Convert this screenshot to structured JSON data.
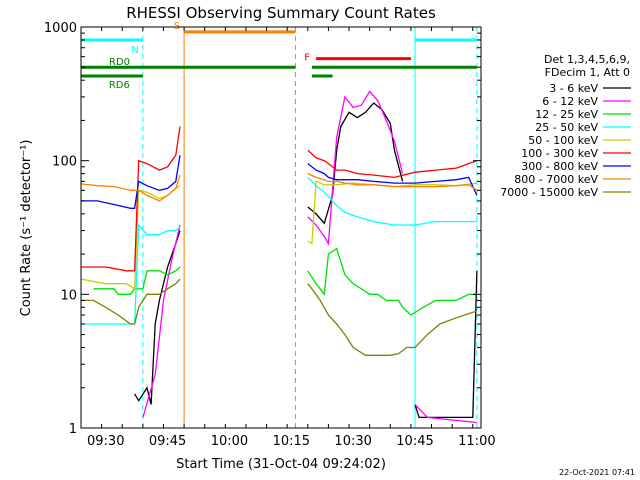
{
  "chart_data": {
    "type": "line",
    "title": "RHESSI Observing Summary Count Rates",
    "xlabel": "Start Time (31-Oct-04 09:24:02)",
    "ylabel": "Count Rate (s⁻¹ detector⁻¹)",
    "y_scale": "log",
    "ylim": [
      1,
      1000
    ],
    "xlim": [
      "09:24",
      "11:01"
    ],
    "x_ticks": [
      "09:30",
      "09:45",
      "10:00",
      "10:15",
      "10:30",
      "10:45",
      "11:00"
    ],
    "y_ticks": [
      "1",
      "10",
      "100",
      "1000"
    ],
    "grid": false,
    "legend_position": "right",
    "legend_header": [
      "Det 1,3,4,5,6,9,",
      "FDecim 1, Att 0"
    ],
    "series": [
      {
        "name": "3 - 6 keV",
        "color": "#000000",
        "segments": [
          [
            [
              "09:37",
              1.8
            ],
            [
              "09:38",
              1.6
            ],
            [
              "09:40",
              2.0
            ],
            [
              "09:41",
              1.5
            ],
            [
              "09:42",
              6
            ],
            [
              "09:43",
              9
            ],
            [
              "09:45",
              16
            ],
            [
              "09:47",
              24
            ],
            [
              "09:48",
              30
            ]
          ],
          [
            [
              "10:19",
              45
            ],
            [
              "10:21",
              40
            ],
            [
              "10:23",
              34
            ],
            [
              "10:25",
              55
            ],
            [
              "10:26",
              120
            ],
            [
              "10:27",
              180
            ],
            [
              "10:29",
              230
            ],
            [
              "10:31",
              210
            ],
            [
              "10:33",
              230
            ],
            [
              "10:35",
              270
            ],
            [
              "10:37",
              240
            ],
            [
              "10:39",
              190
            ],
            [
              "10:40",
              120
            ],
            [
              "10:42",
              70
            ]
          ],
          [
            [
              "10:45",
              1.5
            ],
            [
              "10:46",
              1.2
            ],
            [
              "10:59",
              1.2
            ],
            [
              "11:00",
              15
            ]
          ]
        ]
      },
      {
        "name": "6 - 12 keV",
        "color": "#ff00ff",
        "segments": [
          [
            [
              "09:39",
              1.2
            ],
            [
              "09:42",
              2.5
            ],
            [
              "09:44",
              9
            ],
            [
              "09:46",
              18
            ],
            [
              "09:48",
              33
            ]
          ],
          [
            [
              "10:19",
              38
            ],
            [
              "10:21",
              33
            ],
            [
              "10:23",
              27
            ],
            [
              "10:24",
              24
            ],
            [
              "10:26",
              150
            ],
            [
              "10:28",
              300
            ],
            [
              "10:30",
              250
            ],
            [
              "10:32",
              260
            ],
            [
              "10:34",
              330
            ],
            [
              "10:36",
              280
            ],
            [
              "10:38",
              200
            ],
            [
              "10:40",
              140
            ],
            [
              "10:42",
              80
            ]
          ],
          [
            [
              "10:45",
              1.5
            ],
            [
              "10:48",
              1.2
            ],
            [
              "11:00",
              1.1
            ]
          ]
        ]
      },
      {
        "name": "12 - 25 keV",
        "color": "#00e000",
        "segments": [
          [
            [
              "09:27",
              11
            ],
            [
              "09:32",
              11
            ],
            [
              "09:33",
              10
            ],
            [
              "09:36",
              10
            ],
            [
              "09:37",
              11
            ],
            [
              "09:39",
              11
            ],
            [
              "09:40",
              15
            ],
            [
              "09:43",
              15
            ],
            [
              "09:45",
              14
            ],
            [
              "09:47",
              15
            ],
            [
              "09:48",
              16
            ]
          ],
          [
            [
              "10:19",
              15
            ],
            [
              "10:21",
              12
            ],
            [
              "10:23",
              10
            ],
            [
              "10:24",
              20
            ],
            [
              "10:26",
              22
            ],
            [
              "10:28",
              14
            ],
            [
              "10:30",
              12
            ],
            [
              "10:32",
              11
            ],
            [
              "10:34",
              10
            ],
            [
              "10:36",
              10
            ],
            [
              "10:38",
              9
            ],
            [
              "10:41",
              9
            ],
            [
              "10:42",
              8
            ],
            [
              "10:44",
              7
            ],
            [
              "10:47",
              8
            ],
            [
              "10:50",
              9
            ],
            [
              "10:55",
              9
            ],
            [
              "10:58",
              10
            ],
            [
              "11:00",
              10
            ]
          ]
        ]
      },
      {
        "name": "25 - 50 keV",
        "color": "#00ffff",
        "segments": [
          [
            [
              "09:24",
              6
            ],
            [
              "09:30",
              6
            ],
            [
              "09:35",
              6
            ],
            [
              "09:37",
              6
            ],
            [
              "09:38",
              33
            ],
            [
              "09:40",
              28
            ],
            [
              "09:43",
              28
            ],
            [
              "09:45",
              30
            ],
            [
              "09:47",
              30
            ],
            [
              "09:48",
              32
            ]
          ],
          [
            [
              "10:19",
              75
            ],
            [
              "10:21",
              65
            ],
            [
              "10:23",
              58
            ],
            [
              "10:24",
              54
            ],
            [
              "10:26",
              46
            ],
            [
              "10:28",
              41
            ],
            [
              "10:31",
              38
            ],
            [
              "10:35",
              35
            ],
            [
              "10:40",
              33
            ],
            [
              "10:45",
              33
            ],
            [
              "10:50",
              35
            ],
            [
              "10:55",
              35
            ],
            [
              "11:00",
              35
            ]
          ]
        ]
      },
      {
        "name": "50 - 100 keV",
        "color": "#cccc00",
        "segments": [
          [
            [
              "09:24",
              13
            ],
            [
              "09:30",
              12
            ],
            [
              "09:35",
              12
            ],
            [
              "09:37",
              11
            ],
            [
              "09:38",
              60
            ],
            [
              "09:40",
              58
            ],
            [
              "09:43",
              52
            ],
            [
              "09:45",
              55
            ],
            [
              "09:47",
              62
            ],
            [
              "09:48",
              65
            ]
          ],
          [
            [
              "10:19",
              25
            ],
            [
              "10:20",
              24
            ],
            [
              "10:21",
              70
            ],
            [
              "10:23",
              66
            ],
            [
              "10:26",
              66
            ],
            [
              "10:30",
              68
            ],
            [
              "10:35",
              66
            ],
            [
              "10:40",
              64
            ],
            [
              "10:45",
              66
            ],
            [
              "10:50",
              66
            ],
            [
              "10:55",
              65
            ],
            [
              "11:00",
              68
            ]
          ]
        ]
      },
      {
        "name": "100 - 300 keV",
        "color": "#ff0000",
        "segments": [
          [
            [
              "09:24",
              16
            ],
            [
              "09:30",
              16
            ],
            [
              "09:35",
              15
            ],
            [
              "09:37",
              15
            ],
            [
              "09:38",
              100
            ],
            [
              "09:40",
              95
            ],
            [
              "09:43",
              85
            ],
            [
              "09:45",
              90
            ],
            [
              "09:47",
              110
            ],
            [
              "09:48",
              180
            ]
          ],
          [
            [
              "10:19",
              120
            ],
            [
              "10:21",
              105
            ],
            [
              "10:23",
              100
            ],
            [
              "10:24",
              95
            ],
            [
              "10:26",
              85
            ],
            [
              "10:28",
              85
            ],
            [
              "10:31",
              80
            ],
            [
              "10:35",
              78
            ],
            [
              "10:40",
              75
            ],
            [
              "10:45",
              82
            ],
            [
              "10:50",
              85
            ],
            [
              "10:55",
              88
            ],
            [
              "10:58",
              95
            ],
            [
              "11:00",
              100
            ]
          ]
        ]
      },
      {
        "name": "300 - 800 keV",
        "color": "#0000ff",
        "segments": [
          [
            [
              "09:24",
              50
            ],
            [
              "09:28",
              50
            ],
            [
              "09:32",
              47
            ],
            [
              "09:36",
              44
            ],
            [
              "09:37",
              44
            ],
            [
              "09:38",
              70
            ],
            [
              "09:40",
              65
            ],
            [
              "09:43",
              60
            ],
            [
              "09:45",
              62
            ],
            [
              "09:47",
              70
            ],
            [
              "09:48",
              110
            ]
          ],
          [
            [
              "10:19",
              95
            ],
            [
              "10:21",
              85
            ],
            [
              "10:23",
              80
            ],
            [
              "10:24",
              75
            ],
            [
              "10:26",
              72
            ],
            [
              "10:28",
              72
            ],
            [
              "10:31",
              72
            ],
            [
              "10:35",
              70
            ],
            [
              "10:40",
              68
            ],
            [
              "10:45",
              68
            ],
            [
              "10:50",
              70
            ],
            [
              "10:55",
              72
            ],
            [
              "10:58",
              75
            ],
            [
              "11:00",
              55
            ]
          ]
        ]
      },
      {
        "name": "800 - 7000 keV",
        "color": "#ff8000",
        "segments": [
          [
            [
              "09:24",
              67
            ],
            [
              "09:28",
              65
            ],
            [
              "09:32",
              64
            ],
            [
              "09:36",
              60
            ],
            [
              "09:37",
              60
            ],
            [
              "09:38",
              60
            ],
            [
              "09:40",
              55
            ],
            [
              "09:43",
              50
            ],
            [
              "09:45",
              55
            ],
            [
              "09:47",
              62
            ],
            [
              "09:48",
              78
            ]
          ],
          [
            [
              "10:19",
              80
            ],
            [
              "10:21",
              75
            ],
            [
              "10:23",
              72
            ],
            [
              "10:24",
              70
            ],
            [
              "10:26",
              70
            ],
            [
              "10:28",
              68
            ],
            [
              "10:31",
              66
            ],
            [
              "10:35",
              66
            ],
            [
              "10:40",
              64
            ],
            [
              "10:45",
              64
            ],
            [
              "10:50",
              64
            ],
            [
              "10:55",
              65
            ],
            [
              "10:58",
              66
            ],
            [
              "11:00",
              60
            ]
          ]
        ]
      },
      {
        "name": "7000 - 15000 keV",
        "color": "#808000",
        "segments": [
          [
            [
              "09:24",
              9
            ],
            [
              "09:27",
              9
            ],
            [
              "09:30",
              8
            ],
            [
              "09:33",
              7
            ],
            [
              "09:36",
              6
            ],
            [
              "09:37",
              6
            ],
            [
              "09:38",
              8
            ],
            [
              "09:40",
              10
            ],
            [
              "09:43",
              10
            ],
            [
              "09:45",
              11
            ],
            [
              "09:47",
              12
            ],
            [
              "09:48",
              13
            ]
          ],
          [
            [
              "10:19",
              12
            ],
            [
              "10:20",
              11
            ],
            [
              "10:22",
              9
            ],
            [
              "10:24",
              7
            ],
            [
              "10:26",
              6
            ],
            [
              "10:28",
              5
            ],
            [
              "10:30",
              4
            ],
            [
              "10:33",
              3.5
            ],
            [
              "10:36",
              3.5
            ],
            [
              "10:39",
              3.5
            ],
            [
              "10:41",
              3.6
            ],
            [
              "10:43",
              4
            ],
            [
              "10:45",
              4
            ],
            [
              "10:48",
              5
            ],
            [
              "10:51",
              6
            ],
            [
              "10:54",
              6.5
            ],
            [
              "10:57",
              7
            ],
            [
              "11:00",
              7.5
            ]
          ]
        ]
      }
    ],
    "flag_bars": [
      {
        "label": "N",
        "color": "#00ffff",
        "ranges": [
          [
            "09:24",
            "09:39"
          ],
          [
            "10:45",
            "11:00"
          ]
        ],
        "level": 800
      },
      {
        "label": "S",
        "color": "#ff8000",
        "ranges": [
          [
            "09:49",
            "10:16"
          ]
        ],
        "level": 920
      },
      {
        "label": "F",
        "color": "#ff0000",
        "ranges": [
          [
            "10:21",
            "10:44"
          ]
        ],
        "level": 580
      },
      {
        "label": "RD0",
        "color": "#008000",
        "ranges": [
          [
            "09:24",
            "10:16"
          ],
          [
            "10:20",
            "11:00"
          ]
        ],
        "level": 500
      },
      {
        "label": "RD6",
        "color": "#008000",
        "ranges": [
          [
            "09:24",
            "09:39"
          ],
          [
            "10:20",
            "10:25"
          ]
        ],
        "level": 430
      }
    ],
    "vertical_markers": [
      {
        "time": "09:24",
        "color": "#00ffff",
        "style": "solid"
      },
      {
        "time": "09:39",
        "color": "#00ffff",
        "style": "dashed"
      },
      {
        "time": "09:49",
        "color": "#ff8000",
        "style": "solid"
      },
      {
        "time": "10:16",
        "color": "#ff8000",
        "style": "dashed"
      },
      {
        "time": "10:45",
        "color": "#00ffff",
        "style": "solid"
      },
      {
        "time": "11:00",
        "color": "#00ffff",
        "style": "dashed"
      }
    ],
    "footer_text": "22-Oct-2021 07:41"
  }
}
